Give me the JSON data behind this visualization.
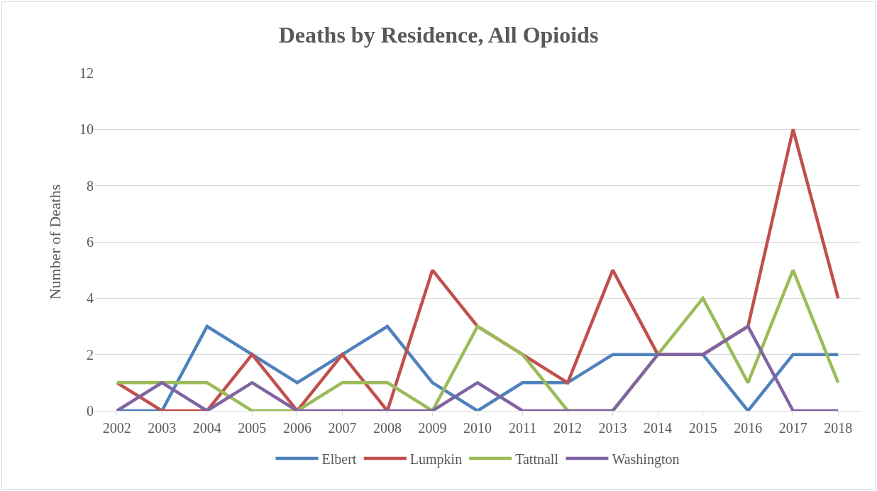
{
  "chart_data": {
    "type": "line",
    "title": "Deaths by Residence, All Opioids",
    "ylabel": "Number of Deaths",
    "categories": [
      "2002",
      "2003",
      "2004",
      "2005",
      "2006",
      "2007",
      "2008",
      "2009",
      "2010",
      "2011",
      "2012",
      "2013",
      "2014",
      "2015",
      "2016",
      "2017",
      "2018"
    ],
    "series": [
      {
        "name": "Elbert",
        "color": "#4f81bd",
        "values": [
          0,
          0,
          3,
          2,
          1,
          2,
          3,
          1,
          0,
          1,
          1,
          2,
          2,
          2,
          0,
          2,
          2
        ]
      },
      {
        "name": "Lumpkin",
        "color": "#c0504d",
        "values": [
          1,
          0,
          0,
          2,
          0,
          2,
          0,
          5,
          3,
          2,
          1,
          5,
          2,
          2,
          3,
          10,
          4
        ]
      },
      {
        "name": "Tattnall",
        "color": "#9bbb59",
        "values": [
          1,
          1,
          1,
          0,
          0,
          1,
          1,
          0,
          3,
          2,
          0,
          0,
          2,
          4,
          1,
          5,
          1
        ]
      },
      {
        "name": "Washington",
        "color": "#8064a2",
        "values": [
          0,
          1,
          0,
          1,
          0,
          0,
          0,
          0,
          1,
          0,
          0,
          0,
          2,
          2,
          3,
          0,
          0
        ]
      }
    ],
    "ylim": [
      0,
      12
    ],
    "yticks": [
      0,
      2,
      4,
      6,
      8,
      10,
      12
    ],
    "grid": "y",
    "legend": "bottom",
    "marker": "none",
    "line_style": "solid"
  }
}
